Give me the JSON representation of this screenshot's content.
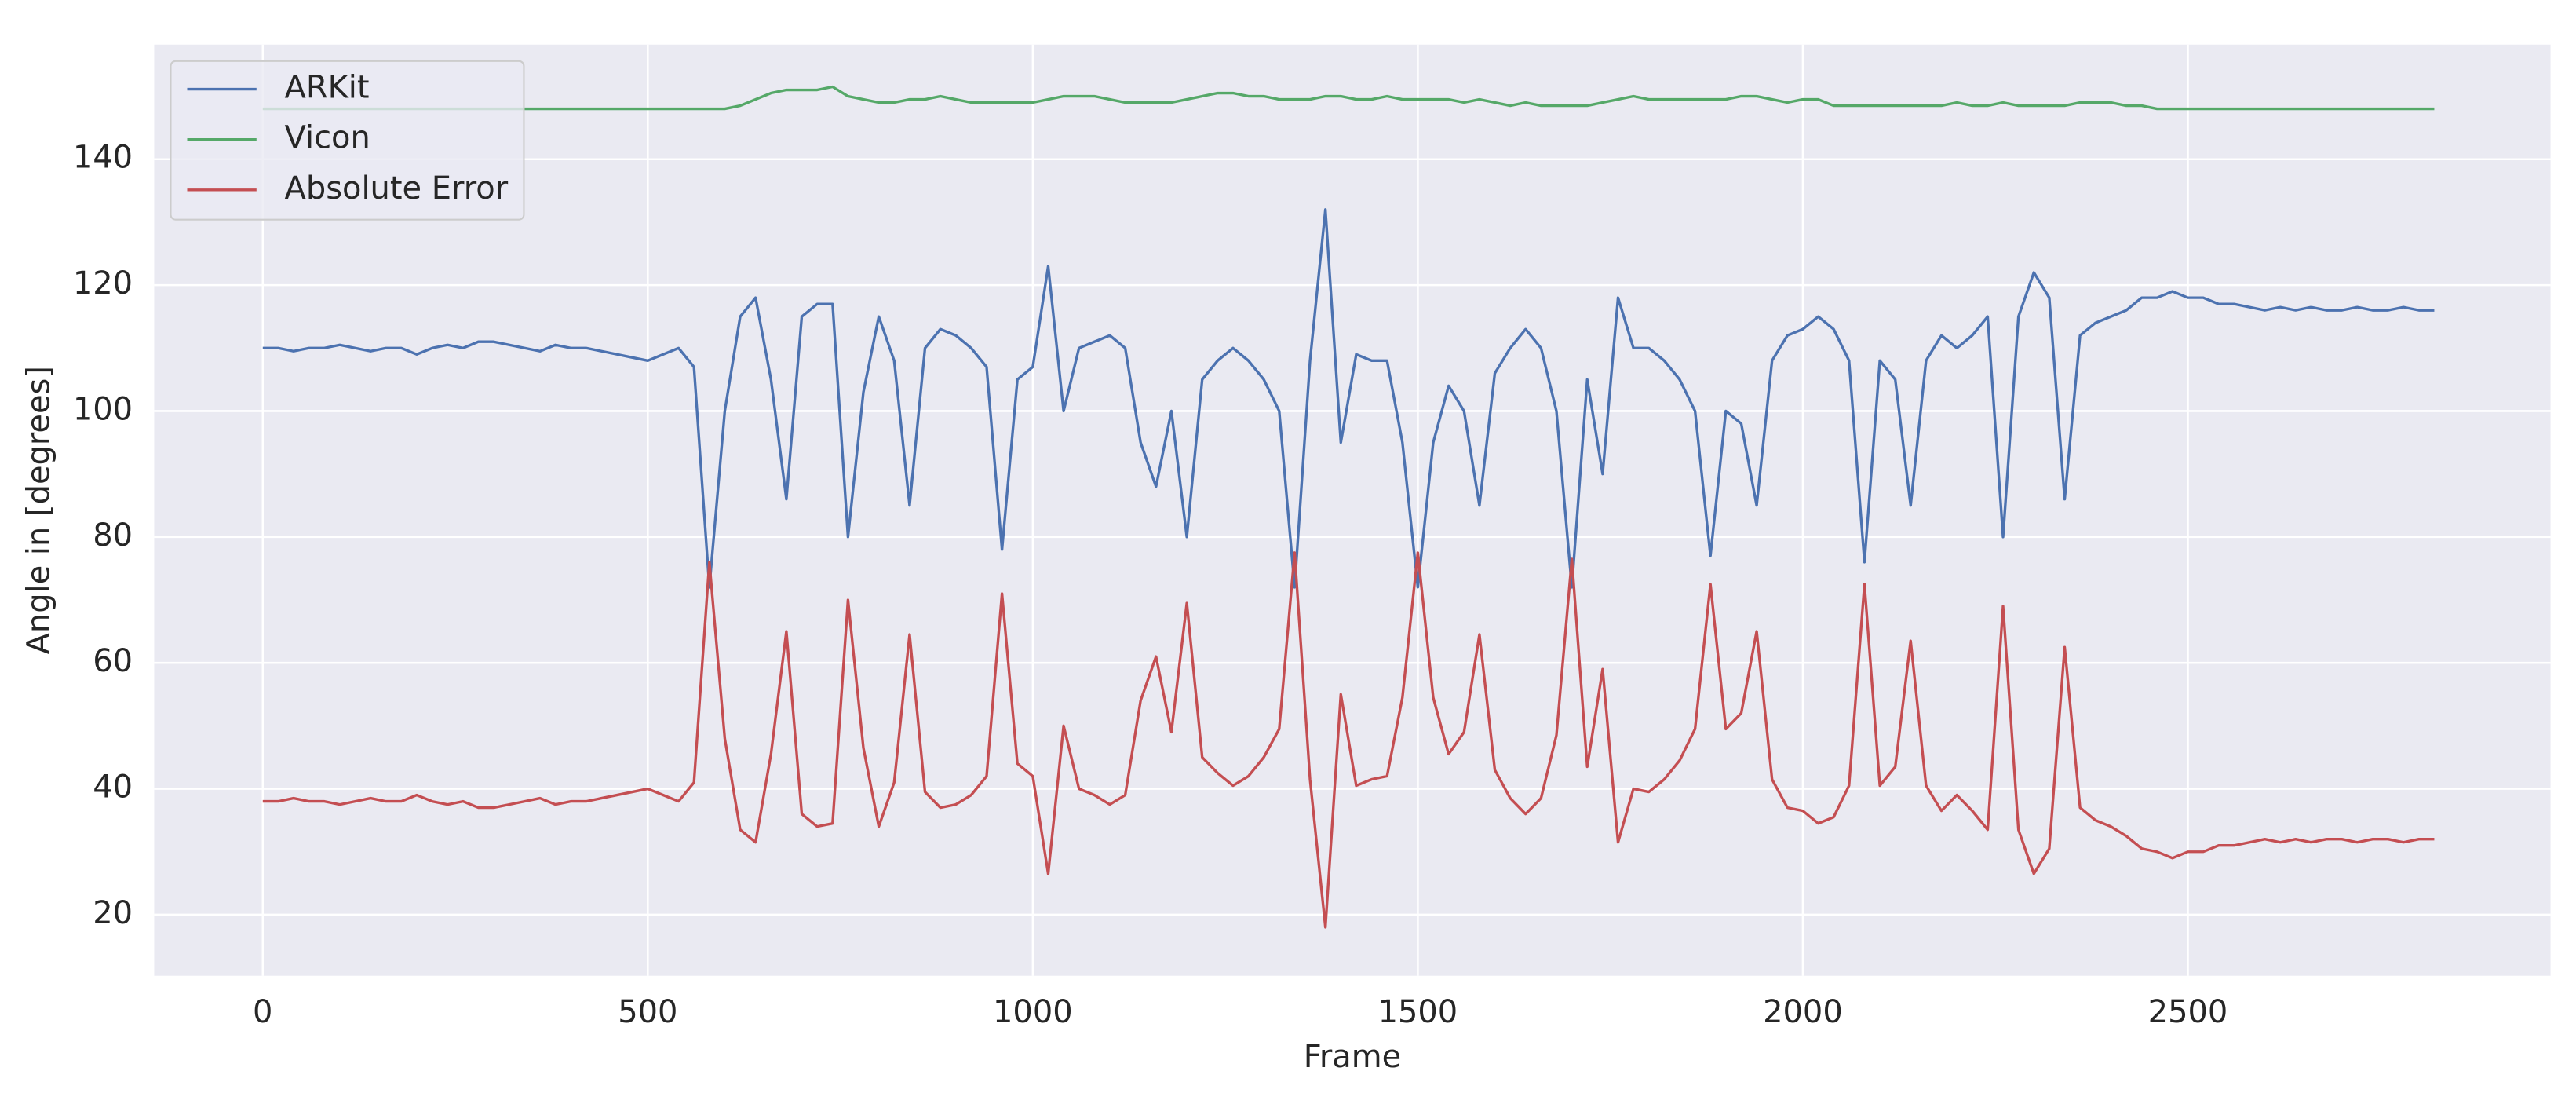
{
  "chart_data": {
    "type": "line",
    "xlabel": "Frame",
    "ylabel": "Angle in [degrees]",
    "x": [
      0,
      20,
      40,
      60,
      80,
      100,
      120,
      140,
      160,
      180,
      200,
      220,
      240,
      260,
      280,
      300,
      320,
      340,
      360,
      380,
      400,
      420,
      440,
      460,
      480,
      500,
      520,
      540,
      560,
      580,
      600,
      620,
      640,
      660,
      680,
      700,
      720,
      740,
      760,
      780,
      800,
      820,
      840,
      860,
      880,
      900,
      920,
      940,
      960,
      980,
      1000,
      1020,
      1040,
      1060,
      1080,
      1100,
      1120,
      1140,
      1160,
      1180,
      1200,
      1220,
      1240,
      1260,
      1280,
      1300,
      1320,
      1340,
      1360,
      1380,
      1400,
      1420,
      1440,
      1460,
      1480,
      1500,
      1520,
      1540,
      1560,
      1580,
      1600,
      1620,
      1640,
      1660,
      1680,
      1700,
      1720,
      1740,
      1760,
      1780,
      1800,
      1820,
      1840,
      1860,
      1880,
      1900,
      1920,
      1940,
      1960,
      1980,
      2000,
      2020,
      2040,
      2060,
      2080,
      2100,
      2120,
      2140,
      2160,
      2180,
      2200,
      2220,
      2240,
      2260,
      2280,
      2300,
      2320,
      2340,
      2360,
      2380,
      2400,
      2420,
      2440,
      2460,
      2480,
      2500,
      2520,
      2540,
      2560,
      2580,
      2600,
      2620,
      2640,
      2660,
      2680,
      2700,
      2720,
      2740,
      2760,
      2780,
      2800,
      2820
    ],
    "series": [
      {
        "name": "ARKit",
        "color": "#4c72b0",
        "values": [
          110,
          110,
          109.5,
          110,
          110,
          110.5,
          110,
          109.5,
          110,
          110,
          109,
          110,
          110.5,
          110,
          111,
          111,
          110.5,
          110,
          109.5,
          110.5,
          110,
          110,
          109.5,
          109,
          108.5,
          108,
          109,
          110,
          107,
          72,
          100,
          115,
          118,
          105,
          86,
          115,
          117,
          117,
          80,
          103,
          115,
          108,
          85,
          110,
          113,
          112,
          110,
          107,
          78,
          105,
          107,
          123,
          100,
          110,
          111,
          112,
          110,
          95,
          88,
          100,
          80,
          105,
          108,
          110,
          108,
          105,
          100,
          72,
          108,
          132,
          95,
          109,
          108,
          108,
          95,
          72,
          95,
          104,
          100,
          85,
          106,
          110,
          113,
          110,
          100,
          72,
          105,
          90,
          118,
          110,
          110,
          108,
          105,
          100,
          77,
          100,
          98,
          85,
          108,
          112,
          113,
          115,
          113,
          108,
          76,
          108,
          105,
          85,
          108,
          112,
          110,
          112,
          115,
          80,
          115,
          122,
          118,
          86,
          112,
          114,
          115,
          116,
          118,
          118,
          119,
          118,
          118,
          117,
          117,
          116.5,
          116,
          116.5,
          116,
          116.5,
          116,
          116,
          116.5,
          116,
          116,
          116.5,
          116,
          116
        ]
      },
      {
        "name": "Vicon",
        "color": "#55a868",
        "values": [
          148,
          148,
          148,
          148,
          148,
          148,
          148,
          148,
          148,
          148,
          148,
          148,
          148,
          148,
          148,
          148,
          148,
          148,
          148,
          148,
          148,
          148,
          148,
          148,
          148,
          148,
          148,
          148,
          148,
          148,
          148,
          148.5,
          149.5,
          150.5,
          151,
          151,
          151,
          151.5,
          150,
          149.5,
          149,
          149,
          149.5,
          149.5,
          150,
          149.5,
          149,
          149,
          149,
          149,
          149,
          149.5,
          150,
          150,
          150,
          149.5,
          149,
          149,
          149,
          149,
          149.5,
          150,
          150.5,
          150.5,
          150,
          150,
          149.5,
          149.5,
          149.5,
          150,
          150,
          149.5,
          149.5,
          150,
          149.5,
          149.5,
          149.5,
          149.5,
          149,
          149.5,
          149,
          148.5,
          149,
          148.5,
          148.5,
          148.5,
          148.5,
          149,
          149.5,
          150,
          149.5,
          149.5,
          149.5,
          149.5,
          149.5,
          149.5,
          150,
          150,
          149.5,
          149,
          149.5,
          149.5,
          148.5,
          148.5,
          148.5,
          148.5,
          148.5,
          148.5,
          148.5,
          148.5,
          149,
          148.5,
          148.5,
          149,
          148.5,
          148.5,
          148.5,
          148.5,
          149,
          149,
          149,
          148.5,
          148.5,
          148,
          148,
          148,
          148,
          148,
          148,
          148,
          148,
          148,
          148,
          148,
          148,
          148,
          148,
          148,
          148,
          148,
          148,
          148
        ]
      },
      {
        "name": "Absolute Error",
        "color": "#c44e52",
        "values": [
          38,
          38,
          38.5,
          38,
          38,
          37.5,
          38,
          38.5,
          38,
          38,
          39,
          38,
          37.5,
          38,
          37,
          37,
          37.5,
          38,
          38.5,
          37.5,
          38,
          38,
          38.5,
          39,
          39.5,
          40,
          39,
          38,
          41,
          76,
          48,
          33.5,
          31.5,
          45.5,
          65,
          36,
          34,
          34.5,
          70,
          46.5,
          34,
          41,
          64.5,
          39.5,
          37,
          37.5,
          39,
          42,
          71,
          44,
          42,
          26.5,
          50,
          40,
          39,
          37.5,
          39,
          54,
          61,
          49,
          69.5,
          45,
          42.5,
          40.5,
          42,
          45,
          49.5,
          77.5,
          41.5,
          18,
          55,
          40.5,
          41.5,
          42,
          54.5,
          77.5,
          54.5,
          45.5,
          49,
          64.5,
          43,
          38.5,
          36,
          38.5,
          48.5,
          76.5,
          43.5,
          59,
          31.5,
          40,
          39.5,
          41.5,
          44.5,
          49.5,
          72.5,
          49.5,
          52,
          65,
          41.5,
          37,
          36.5,
          34.5,
          35.5,
          40.5,
          72.5,
          40.5,
          43.5,
          63.5,
          40.5,
          36.5,
          39,
          36.5,
          33.5,
          69,
          33.5,
          26.5,
          30.5,
          62.5,
          37,
          35,
          34,
          32.5,
          30.5,
          30,
          29,
          30,
          30,
          31,
          31,
          31.5,
          32,
          31.5,
          32,
          31.5,
          32,
          32,
          31.5,
          32,
          32,
          31.5,
          32,
          32
        ]
      }
    ],
    "xlim": [
      -141,
      2971
    ],
    "ylim": [
      10.3,
      158.2
    ],
    "xticks": [
      0,
      500,
      1000,
      1500,
      2000,
      2500
    ],
    "yticks": [
      20,
      40,
      60,
      80,
      100,
      120,
      140
    ],
    "grid": true,
    "legend": "upper left"
  }
}
